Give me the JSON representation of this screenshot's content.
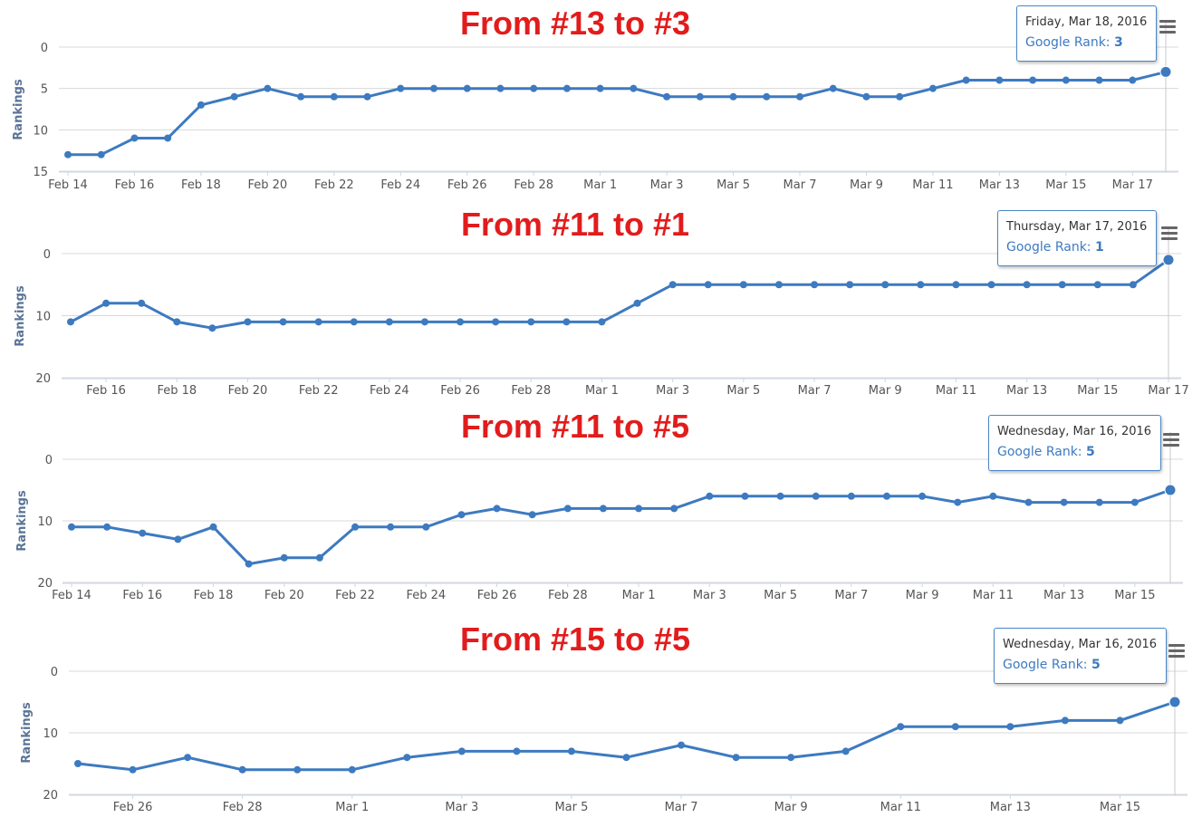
{
  "chart_data": [
    {
      "type": "line",
      "title": "From #13 to #3",
      "ylabel": "Rankings",
      "yticks": [
        0,
        5,
        10,
        15
      ],
      "ylim": [
        0,
        15
      ],
      "y_reversed": true,
      "x_start": "Feb 14",
      "x_end": "Mar 18",
      "xticks": [
        "Feb 14",
        "Feb 16",
        "Feb 18",
        "Feb 20",
        "Feb 22",
        "Feb 24",
        "Feb 26",
        "Feb 28",
        "Mar 1",
        "Mar 3",
        "Mar 5",
        "Mar 7",
        "Mar 9",
        "Mar 11",
        "Mar 13",
        "Mar 15",
        "Mar 17"
      ],
      "series": [
        {
          "x": [
            "Feb 14",
            "Feb 15",
            "Feb 16",
            "Feb 17",
            "Feb 18",
            "Feb 19",
            "Feb 20",
            "Feb 21",
            "Feb 22",
            "Feb 23",
            "Feb 24",
            "Feb 25",
            "Feb 26",
            "Feb 27",
            "Feb 28",
            "Feb 29",
            "Mar 1",
            "Mar 2",
            "Mar 3",
            "Mar 4",
            "Mar 5",
            "Mar 6",
            "Mar 7",
            "Mar 8",
            "Mar 9",
            "Mar 10",
            "Mar 11",
            "Mar 12",
            "Mar 13",
            "Mar 14",
            "Mar 15",
            "Mar 16",
            "Mar 17",
            "Mar 18"
          ],
          "values": [
            13,
            13,
            11,
            11,
            7,
            6,
            5,
            6,
            6,
            6,
            5,
            5,
            5,
            5,
            5,
            5,
            5,
            5,
            6,
            6,
            6,
            6,
            6,
            5,
            6,
            6,
            5,
            4,
            4,
            4,
            4,
            4,
            4,
            3
          ]
        }
      ],
      "tooltip": {
        "date": "Friday, Mar 18, 2016",
        "label": "Google Rank:",
        "value": "3"
      }
    },
    {
      "type": "line",
      "title": "From #11 to #1",
      "ylabel": "Rankings",
      "yticks": [
        0,
        10,
        20
      ],
      "ylim": [
        0,
        20
      ],
      "y_reversed": true,
      "x_start": "Feb 15",
      "x_end": "Mar 17",
      "xticks": [
        "Feb 16",
        "Feb 18",
        "Feb 20",
        "Feb 22",
        "Feb 24",
        "Feb 26",
        "Feb 28",
        "Mar 1",
        "Mar 3",
        "Mar 5",
        "Mar 7",
        "Mar 9",
        "Mar 11",
        "Mar 13",
        "Mar 15",
        "Mar 17"
      ],
      "series": [
        {
          "x": [
            "Feb 15",
            "Feb 16",
            "Feb 17",
            "Feb 18",
            "Feb 19",
            "Feb 20",
            "Feb 21",
            "Feb 22",
            "Feb 23",
            "Feb 24",
            "Feb 25",
            "Feb 26",
            "Feb 27",
            "Feb 28",
            "Feb 29",
            "Mar 1",
            "Mar 2",
            "Mar 3",
            "Mar 4",
            "Mar 5",
            "Mar 6",
            "Mar 7",
            "Mar 8",
            "Mar 9",
            "Mar 10",
            "Mar 11",
            "Mar 12",
            "Mar 13",
            "Mar 14",
            "Mar 15",
            "Mar 16",
            "Mar 17"
          ],
          "values": [
            11,
            8,
            8,
            11,
            12,
            11,
            11,
            11,
            11,
            11,
            11,
            11,
            11,
            11,
            11,
            11,
            8,
            5,
            5,
            5,
            5,
            5,
            5,
            5,
            5,
            5,
            5,
            5,
            5,
            5,
            5,
            1
          ]
        }
      ],
      "tooltip": {
        "date": "Thursday, Mar 17, 2016",
        "label": "Google Rank:",
        "value": "1"
      }
    },
    {
      "type": "line",
      "title": "From #11 to #5",
      "ylabel": "Rankings",
      "yticks": [
        0,
        10,
        20
      ],
      "ylim": [
        0,
        20
      ],
      "y_reversed": true,
      "x_start": "Feb 14",
      "x_end": "Mar 16",
      "xticks": [
        "Feb 14",
        "Feb 16",
        "Feb 18",
        "Feb 20",
        "Feb 22",
        "Feb 24",
        "Feb 26",
        "Feb 28",
        "Mar 1",
        "Mar 3",
        "Mar 5",
        "Mar 7",
        "Mar 9",
        "Mar 11",
        "Mar 13",
        "Mar 15"
      ],
      "series": [
        {
          "x": [
            "Feb 14",
            "Feb 15",
            "Feb 16",
            "Feb 17",
            "Feb 18",
            "Feb 19",
            "Feb 20",
            "Feb 21",
            "Feb 22",
            "Feb 23",
            "Feb 24",
            "Feb 25",
            "Feb 26",
            "Feb 27",
            "Feb 28",
            "Feb 29",
            "Mar 1",
            "Mar 2",
            "Mar 3",
            "Mar 4",
            "Mar 5",
            "Mar 6",
            "Mar 7",
            "Mar 8",
            "Mar 9",
            "Mar 10",
            "Mar 11",
            "Mar 12",
            "Mar 13",
            "Mar 14",
            "Mar 15",
            "Mar 16"
          ],
          "values": [
            11,
            11,
            12,
            13,
            11,
            17,
            16,
            16,
            11,
            11,
            11,
            9,
            8,
            9,
            8,
            8,
            8,
            8,
            6,
            6,
            6,
            6,
            6,
            6,
            6,
            7,
            6,
            7,
            7,
            7,
            7,
            5
          ]
        }
      ],
      "tooltip": {
        "date": "Wednesday, Mar 16, 2016",
        "label": "Google Rank:",
        "value": "5"
      }
    },
    {
      "type": "line",
      "title": "From #15 to #5",
      "ylabel": "Rankings",
      "yticks": [
        0,
        10,
        20
      ],
      "ylim": [
        0,
        20
      ],
      "y_reversed": true,
      "x_start": "Feb 25",
      "x_end": "Mar 16",
      "xticks": [
        "Feb 26",
        "Feb 28",
        "Mar 1",
        "Mar 3",
        "Mar 5",
        "Mar 7",
        "Mar 9",
        "Mar 11",
        "Mar 13",
        "Mar 15"
      ],
      "series": [
        {
          "x": [
            "Feb 25",
            "Feb 26",
            "Feb 27",
            "Feb 28",
            "Feb 29",
            "Mar 1",
            "Mar 2",
            "Mar 3",
            "Mar 4",
            "Mar 5",
            "Mar 6",
            "Mar 7",
            "Mar 8",
            "Mar 9",
            "Mar 10",
            "Mar 11",
            "Mar 12",
            "Mar 13",
            "Mar 14",
            "Mar 15",
            "Mar 16"
          ],
          "values": [
            15,
            16,
            14,
            16,
            16,
            16,
            14,
            13,
            13,
            13,
            14,
            12,
            14,
            14,
            13,
            9,
            9,
            9,
            8,
            8,
            5
          ]
        }
      ],
      "tooltip": {
        "date": "Wednesday, Mar 16, 2016",
        "label": "Google Rank:",
        "value": "5"
      }
    }
  ],
  "colors": {
    "line": "#3d7ac0",
    "title": "#e21c1c",
    "grid": "#d8d8d8",
    "crosshair": "#c8c8c8"
  },
  "icons": {
    "menu": "hamburger-menu-icon"
  }
}
